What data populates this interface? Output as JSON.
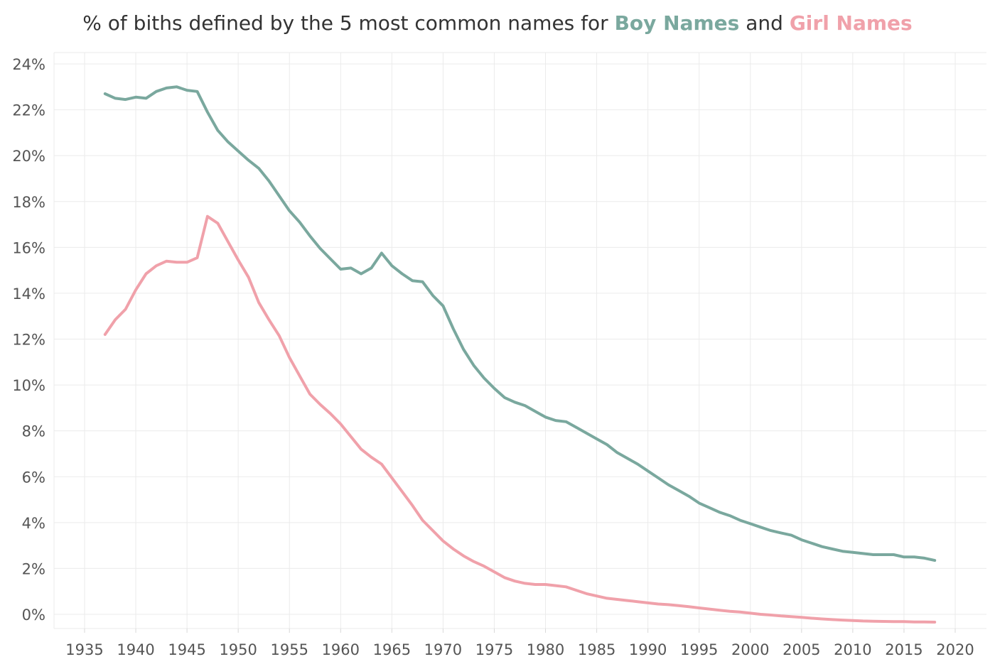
{
  "title": {
    "prefix": "% of biths defined by the 5 most common names for",
    "boy": "Boy Names",
    "and": "and",
    "girl": "Girl Names"
  },
  "colors": {
    "boy": "#7aa89e",
    "girl": "#f0a1aa",
    "grid": "#ebebeb",
    "text": "#555555"
  },
  "chart_data": {
    "type": "line",
    "title": "% of biths defined by the 5 most common names for Boy Names and Girl Names",
    "xlabel": "",
    "ylabel": "",
    "xlim": [
      1933,
      2022
    ],
    "ylim": [
      -0.5,
      24.4
    ],
    "grid": true,
    "x_ticks": [
      1935,
      1940,
      1945,
      1950,
      1955,
      1960,
      1965,
      1970,
      1975,
      1980,
      1985,
      1990,
      1995,
      2000,
      2005,
      2010,
      2015,
      2020
    ],
    "y_ticks": [
      0,
      2,
      4,
      6,
      8,
      10,
      12,
      14,
      16,
      18,
      20,
      22,
      24
    ],
    "y_tick_labels": [
      "0%",
      "2%",
      "4%",
      "6%",
      "8%",
      "10%",
      "12%",
      "14%",
      "16%",
      "18%",
      "20%",
      "22%",
      "24%"
    ],
    "x_tick_labels": [
      "1935",
      "1940",
      "1945",
      "1950",
      "1955",
      "1960",
      "1965",
      "1970",
      "1975",
      "1980",
      "1985",
      "1990",
      "1995",
      "2000",
      "2005",
      "2010",
      "2015",
      "2020"
    ],
    "x": [
      1937,
      1938,
      1939,
      1940,
      1941,
      1942,
      1943,
      1944,
      1945,
      1946,
      1947,
      1948,
      1949,
      1950,
      1951,
      1952,
      1953,
      1954,
      1955,
      1956,
      1957,
      1958,
      1959,
      1960,
      1961,
      1962,
      1963,
      1964,
      1965,
      1966,
      1967,
      1968,
      1969,
      1970,
      1971,
      1972,
      1973,
      1974,
      1975,
      1976,
      1977,
      1978,
      1979,
      1980,
      1981,
      1982,
      1983,
      1984,
      1985,
      1986,
      1987,
      1988,
      1989,
      1990,
      1991,
      1992,
      1993,
      1994,
      1995,
      1996,
      1997,
      1998,
      1999,
      2000,
      2001,
      2002,
      2003,
      2004,
      2005,
      2006,
      2007,
      2008,
      2009,
      2010,
      2011,
      2012,
      2013,
      2014,
      2015,
      2016,
      2017,
      2018
    ],
    "series": [
      {
        "name": "Boy Names",
        "values": [
          22.7,
          22.5,
          22.45,
          22.55,
          22.5,
          22.8,
          22.95,
          23.0,
          22.85,
          22.8,
          21.9,
          21.1,
          20.6,
          20.2,
          19.8,
          19.45,
          18.9,
          18.25,
          17.6,
          17.1,
          16.5,
          15.95,
          15.5,
          15.05,
          15.1,
          14.85,
          15.1,
          15.75,
          15.2,
          14.85,
          14.55,
          14.5,
          13.9,
          13.45,
          12.45,
          11.55,
          10.85,
          10.3,
          9.85,
          9.45,
          9.25,
          9.1,
          8.85,
          8.6,
          8.45,
          8.4,
          8.15,
          7.9,
          7.65,
          7.4,
          7.05,
          6.8,
          6.55,
          6.25,
          5.95,
          5.65,
          5.4,
          5.15,
          4.85,
          4.65,
          4.45,
          4.3,
          4.1,
          3.95,
          3.8,
          3.65,
          3.55,
          3.45,
          3.25,
          3.1,
          2.95,
          2.85,
          2.75,
          2.7,
          2.65,
          2.6,
          2.6,
          2.6,
          2.5,
          2.5,
          2.45,
          2.35
        ]
      },
      {
        "name": "Girl Names",
        "values": [
          12.2,
          12.85,
          13.3,
          14.15,
          14.85,
          15.2,
          15.4,
          15.35,
          15.35,
          15.55,
          17.35,
          17.05,
          16.25,
          15.45,
          14.7,
          13.6,
          12.85,
          12.15,
          11.2,
          10.4,
          9.6,
          9.15,
          8.75,
          8.3,
          7.75,
          7.2,
          6.85,
          6.55,
          5.95,
          5.35,
          4.75,
          4.1,
          3.65,
          3.2,
          2.85,
          2.55,
          2.3,
          2.1,
          1.85,
          1.6,
          1.45,
          1.35,
          1.3,
          1.3,
          1.25,
          1.2,
          1.05,
          0.9,
          0.8,
          0.7,
          0.65,
          0.6,
          0.55,
          0.5,
          0.45,
          0.42,
          0.38,
          0.33,
          0.28,
          0.23,
          0.18,
          0.13,
          0.1,
          0.05,
          0.0,
          -0.03,
          -0.07,
          -0.1,
          -0.13,
          -0.17,
          -0.2,
          -0.23,
          -0.25,
          -0.27,
          -0.29,
          -0.3,
          -0.31,
          -0.32,
          -0.32,
          -0.33,
          -0.33,
          -0.34
        ]
      }
    ]
  }
}
